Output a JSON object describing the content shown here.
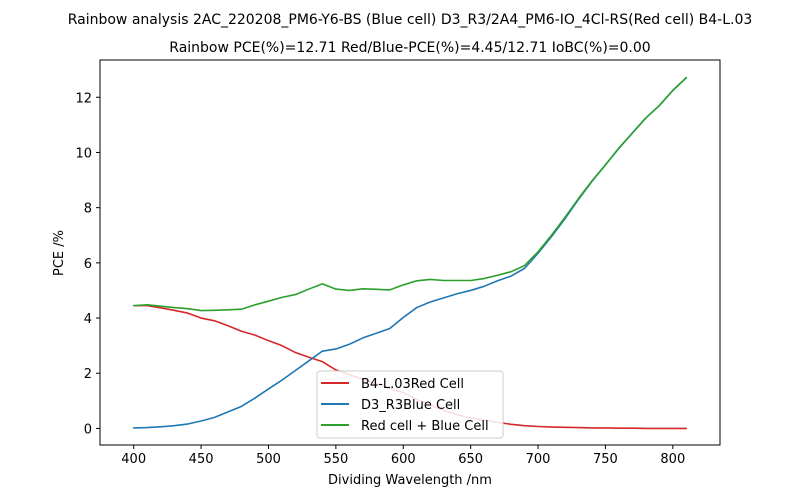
{
  "chart_data": {
    "type": "line",
    "title": "Rainbow analysis 2AC_220208_PM6-Y6-BS (Blue cell) D3_R3/2A4_PM6-IO_4Cl-RS(Red cell) B4-L.03",
    "subtitle": "Rainbow PCE(%)=12.71  Red/Blue-PCE(%)=4.45/12.71   IoBC(%)=0.00",
    "xlabel": "Dividing Wavelength /nm",
    "ylabel": "PCE /%",
    "xlim": [
      375,
      835
    ],
    "ylim": [
      -0.6,
      13.35
    ],
    "x_ticks": [
      400,
      450,
      500,
      550,
      600,
      650,
      700,
      750,
      800
    ],
    "y_ticks": [
      0,
      2,
      4,
      6,
      8,
      10,
      12
    ],
    "legend_position": "bottom-center",
    "grid": false,
    "x": [
      400,
      410,
      420,
      430,
      440,
      450,
      460,
      470,
      480,
      490,
      500,
      510,
      520,
      530,
      540,
      550,
      560,
      570,
      580,
      590,
      600,
      610,
      620,
      630,
      640,
      650,
      660,
      670,
      680,
      690,
      700,
      710,
      720,
      730,
      740,
      750,
      760,
      770,
      780,
      790,
      800,
      810
    ],
    "series": [
      {
        "name": "B4-L.03Red Cell",
        "color": "#d62728",
        "values": [
          4.45,
          4.45,
          4.37,
          4.28,
          4.18,
          4.0,
          3.9,
          3.72,
          3.52,
          3.38,
          3.18,
          3.0,
          2.75,
          2.58,
          2.42,
          2.12,
          1.95,
          1.78,
          1.62,
          1.45,
          1.3,
          1.05,
          0.85,
          0.65,
          0.5,
          0.38,
          0.3,
          0.22,
          0.15,
          0.1,
          0.07,
          0.05,
          0.04,
          0.03,
          0.02,
          0.02,
          0.01,
          0.01,
          0.0,
          0.0,
          0.0,
          0.0
        ]
      },
      {
        "name": "D3_R3Blue Cell",
        "color": "#1f77b4",
        "values": [
          0.02,
          0.03,
          0.06,
          0.1,
          0.16,
          0.27,
          0.4,
          0.6,
          0.8,
          1.1,
          1.43,
          1.75,
          2.1,
          2.45,
          2.8,
          2.88,
          3.05,
          3.28,
          3.45,
          3.62,
          4.02,
          4.38,
          4.58,
          4.73,
          4.88,
          5.0,
          5.15,
          5.35,
          5.52,
          5.8,
          6.35,
          6.95,
          7.6,
          8.3,
          8.95,
          9.55,
          10.15,
          10.7,
          11.25,
          11.7,
          12.25,
          12.71
        ]
      },
      {
        "name": "Red cell + Blue Cell",
        "color": "#2ca02c",
        "values": [
          4.45,
          4.48,
          4.43,
          4.38,
          4.34,
          4.27,
          4.28,
          4.3,
          4.32,
          4.48,
          4.61,
          4.75,
          4.85,
          5.05,
          5.24,
          5.05,
          5.0,
          5.06,
          5.04,
          5.02,
          5.2,
          5.35,
          5.4,
          5.36,
          5.36,
          5.36,
          5.43,
          5.55,
          5.68,
          5.9,
          6.4,
          7.0,
          7.65,
          8.33,
          8.97,
          9.55,
          10.16,
          10.71,
          11.25,
          11.7,
          12.25,
          12.71
        ]
      }
    ]
  }
}
